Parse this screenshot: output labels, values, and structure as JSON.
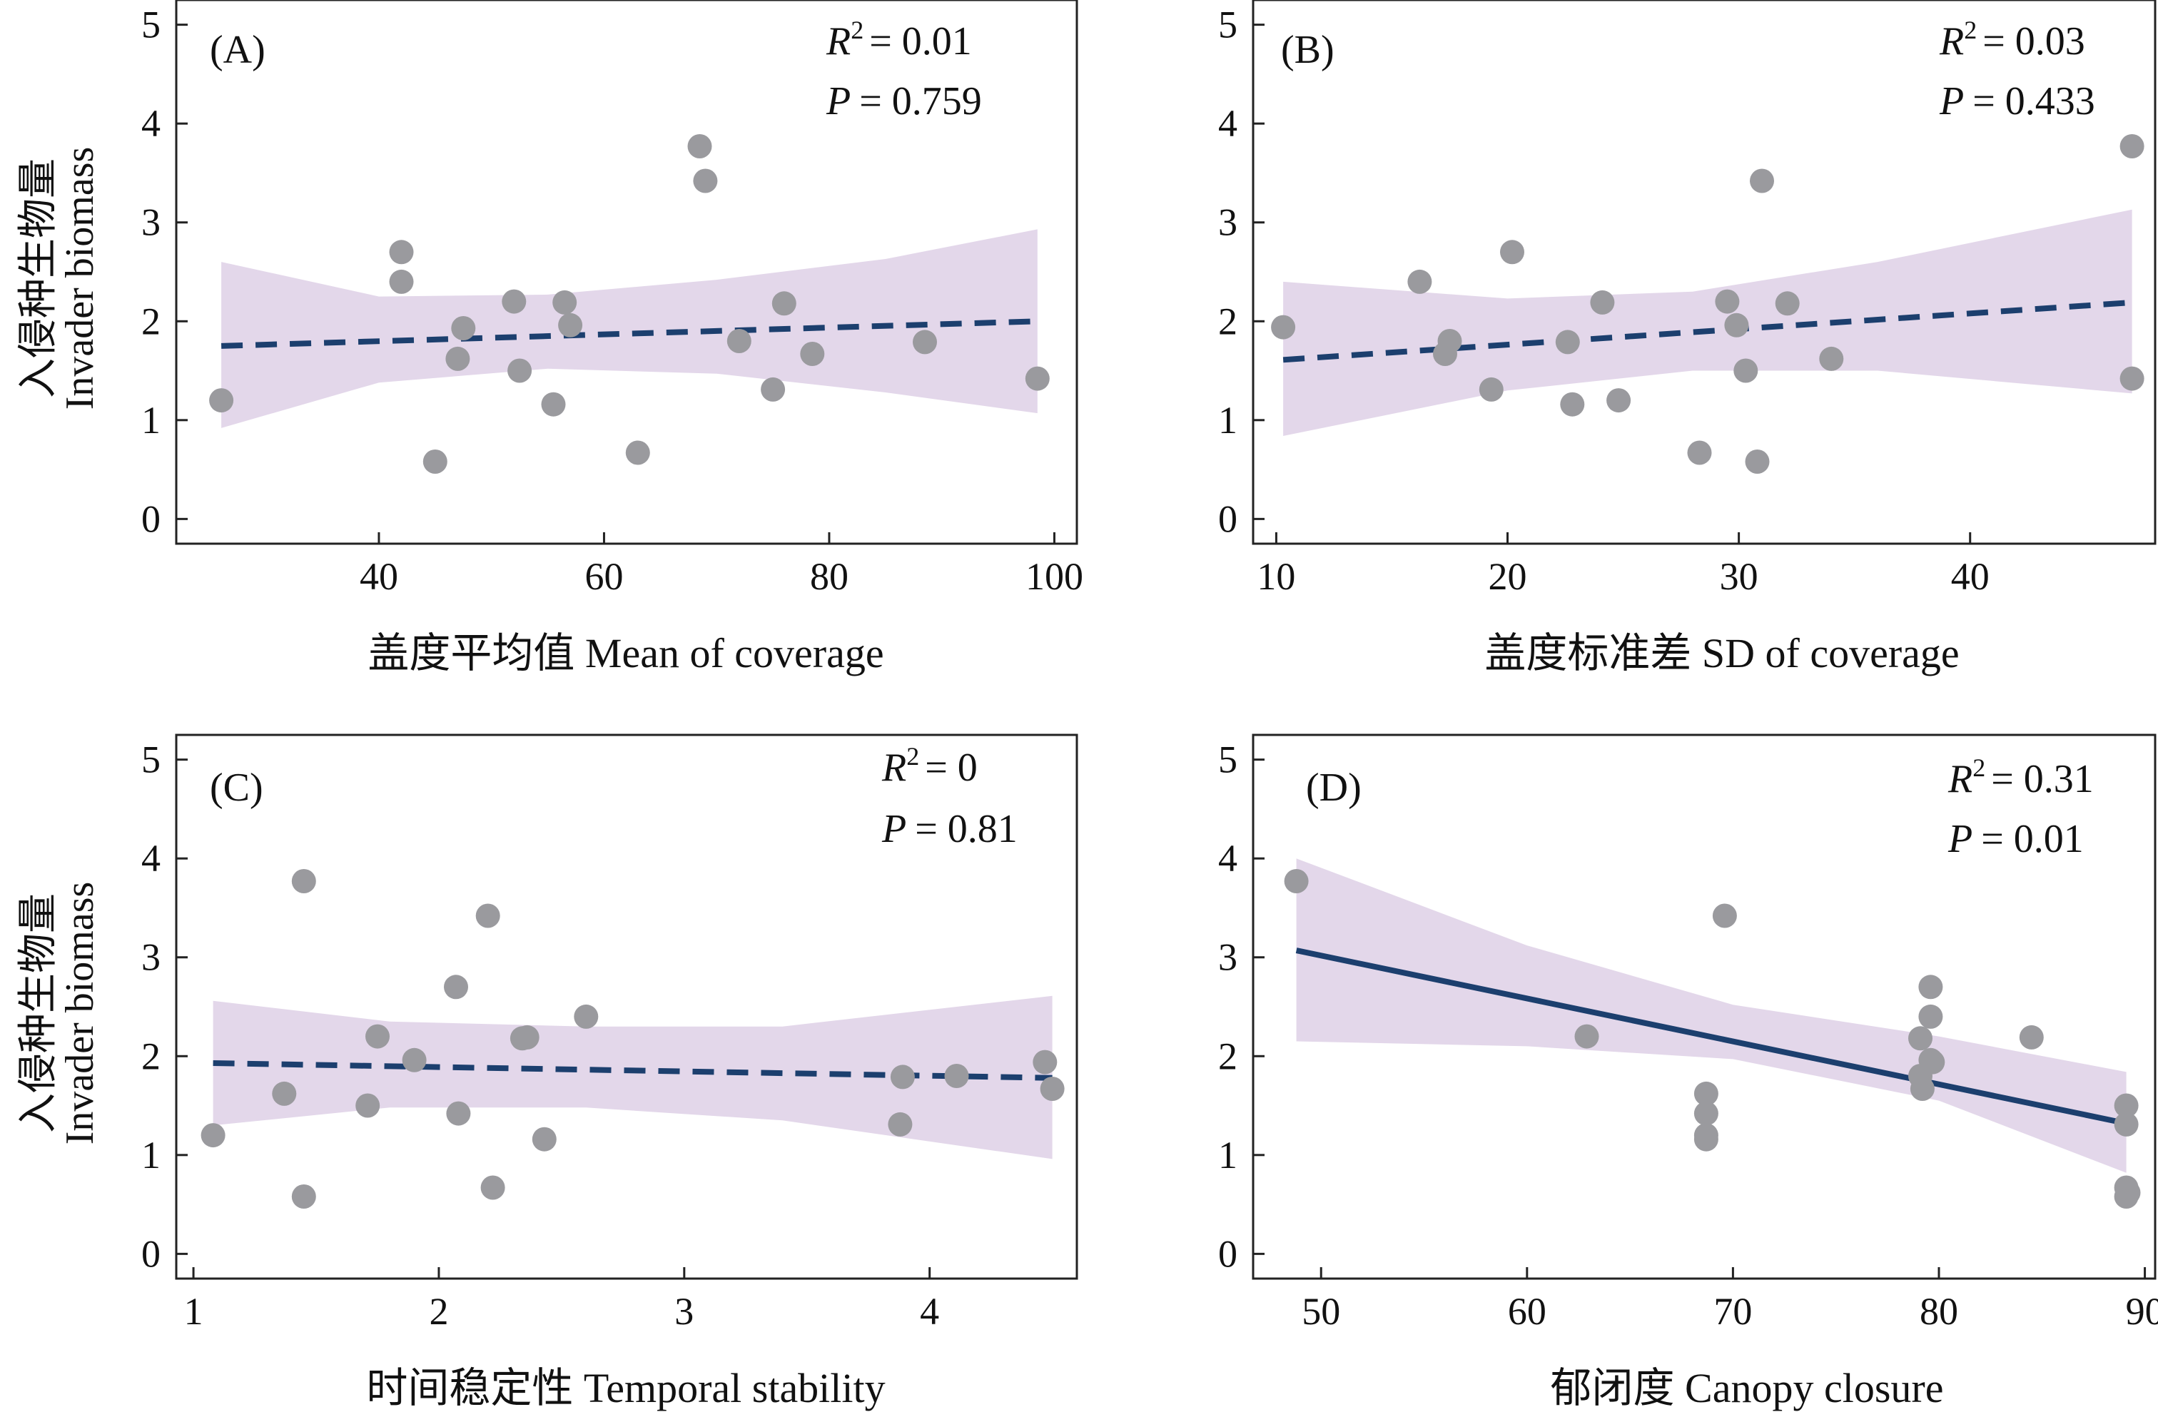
{
  "colors": {
    "band": "#e3d7ea",
    "line": "#1c3f6e",
    "point": "#9a9a9e",
    "axis": "#222222"
  },
  "y_axis": {
    "label_zh": "入侵种生物量",
    "label_en": "Invader biomass"
  },
  "chart_data": [
    {
      "type": "scatter",
      "panel": "(A)",
      "xlabel": "盖度平均值 Mean of coverage",
      "ylabel": "入侵种生物量 Invader biomass",
      "xlim": [
        22,
        102
      ],
      "ylim": [
        -0.25,
        5.25
      ],
      "xticks": [
        40,
        60,
        80,
        100
      ],
      "yticks": [
        0,
        1,
        2,
        3,
        4,
        5
      ],
      "x": [
        26,
        42,
        42,
        45,
        47,
        47.5,
        52,
        52.5,
        55.5,
        56.5,
        57,
        63,
        68.5,
        69,
        72,
        75,
        76,
        78.5,
        88.5,
        98.5
      ],
      "y": [
        1.2,
        2.7,
        2.4,
        0.58,
        1.62,
        1.93,
        2.2,
        1.5,
        1.16,
        2.19,
        1.96,
        0.67,
        3.77,
        3.42,
        1.8,
        1.31,
        2.18,
        1.67,
        1.79,
        1.42
      ],
      "fit": {
        "style": "dashed",
        "x": [
          26,
          98.5
        ],
        "y": [
          1.75,
          2.0
        ]
      },
      "band": {
        "x": [
          26,
          40,
          55,
          70,
          85,
          98.5
        ],
        "lower": [
          0.92,
          1.38,
          1.52,
          1.47,
          1.28,
          1.07
        ],
        "upper": [
          2.6,
          2.25,
          2.27,
          2.42,
          2.63,
          2.93
        ]
      },
      "r2_label": "R",
      "r2_value": "= 0.01",
      "p_label": "P",
      "p_value": "= 0.759"
    },
    {
      "type": "scatter",
      "panel": "(B)",
      "xlabel": "盖度标准差 SD of coverage",
      "ylabel": "",
      "xlim": [
        9,
        48
      ],
      "ylim": [
        -0.25,
        5.25
      ],
      "xticks": [
        10,
        20,
        30,
        40
      ],
      "yticks": [
        0,
        1,
        2,
        3,
        4,
        5
      ],
      "x": [
        10.3,
        16.2,
        17.3,
        17.5,
        19.3,
        20.2,
        22.6,
        22.8,
        24.1,
        24.8,
        28.3,
        29.5,
        29.9,
        30.3,
        30.8,
        31,
        32.1,
        34,
        47,
        47
      ],
      "y": [
        1.94,
        2.4,
        1.67,
        1.8,
        1.31,
        2.7,
        1.79,
        1.16,
        2.19,
        1.2,
        0.67,
        2.2,
        1.96,
        1.5,
        0.58,
        3.42,
        2.18,
        1.62,
        3.77,
        1.42
      ],
      "fit": {
        "style": "dashed",
        "x": [
          10.3,
          47
        ],
        "y": [
          1.61,
          2.19
        ]
      },
      "band": {
        "x": [
          10.3,
          20,
          28,
          36,
          47
        ],
        "lower": [
          0.84,
          1.3,
          1.5,
          1.5,
          1.27
        ],
        "upper": [
          2.4,
          2.23,
          2.3,
          2.6,
          3.13
        ]
      },
      "r2_label": "R",
      "r2_value": "= 0.03",
      "p_label": "P",
      "p_value": "= 0.433"
    },
    {
      "type": "scatter",
      "panel": "(C)",
      "xlabel": "时间稳定性 Temporal stability",
      "ylabel": "入侵种生物量 Invader biomass",
      "xlim": [
        0.93,
        4.6
      ],
      "ylim": [
        -0.25,
        5.25
      ],
      "xticks": [
        1,
        2,
        3,
        4
      ],
      "yticks": [
        0,
        1,
        2,
        3,
        4,
        5
      ],
      "x": [
        1.08,
        1.37,
        1.45,
        1.45,
        1.71,
        1.75,
        1.9,
        2.07,
        2.08,
        2.2,
        2.22,
        2.34,
        2.36,
        2.43,
        2.6,
        3.88,
        3.89,
        4.11,
        4.47,
        4.5
      ],
      "y": [
        1.2,
        1.62,
        3.77,
        0.58,
        1.5,
        2.2,
        1.96,
        2.7,
        1.42,
        3.42,
        0.67,
        2.18,
        2.19,
        1.16,
        2.4,
        1.31,
        1.79,
        1.8,
        1.94,
        1.67
      ],
      "fit": {
        "style": "dashed",
        "x": [
          1.08,
          4.5
        ],
        "y": [
          1.93,
          1.78
        ]
      },
      "band": {
        "x": [
          1.08,
          1.8,
          2.6,
          3.4,
          4.5
        ],
        "lower": [
          1.3,
          1.48,
          1.48,
          1.35,
          0.96
        ],
        "upper": [
          2.56,
          2.35,
          2.3,
          2.3,
          2.61
        ]
      },
      "r2_label": "R",
      "r2_value": "= 0",
      "p_label": "P",
      "p_value": "= 0.81"
    },
    {
      "type": "scatter",
      "panel": "(D)",
      "xlabel": "郁闭度 Canopy closure",
      "ylabel": "",
      "xlim": [
        46.7,
        90.5
      ],
      "ylim": [
        -0.25,
        5.25
      ],
      "xticks": [
        50,
        60,
        70,
        80,
        90
      ],
      "yticks": [
        0,
        1,
        2,
        3,
        4,
        5
      ],
      "x": [
        48.8,
        62.9,
        68.7,
        68.7,
        68.7,
        68.7,
        69.6,
        79.1,
        79.1,
        79.2,
        79.6,
        79.6,
        79.6,
        79.7,
        84.5,
        89.1,
        89.1,
        89.1,
        89.1,
        89.2
      ],
      "y": [
        3.77,
        2.2,
        1.62,
        1.42,
        1.2,
        1.16,
        3.42,
        2.18,
        1.8,
        1.67,
        2.4,
        2.7,
        1.96,
        1.94,
        2.19,
        1.5,
        1.31,
        0.67,
        0.58,
        0.62
      ],
      "fit": {
        "style": "solid",
        "x": [
          48.8,
          89.1
        ],
        "y": [
          3.07,
          1.32
        ]
      },
      "band": {
        "x": [
          48.8,
          60,
          70,
          80,
          89.1
        ],
        "lower": [
          2.15,
          2.1,
          1.97,
          1.55,
          0.82
        ],
        "upper": [
          4.0,
          3.12,
          2.52,
          2.2,
          1.84
        ]
      },
      "r2_label": "R",
      "r2_value": "= 0.31",
      "p_label": "P",
      "p_value": "= 0.01"
    }
  ]
}
